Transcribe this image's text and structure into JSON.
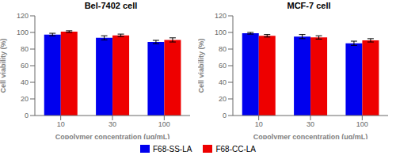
{
  "chart_data": [
    {
      "type": "bar",
      "title": "Bel-7402 cell",
      "categories": [
        "10",
        "30",
        "100"
      ],
      "series": [
        {
          "name": "F68-SS-LA",
          "color": "#0000EE",
          "values": [
            97.5,
            93.5,
            88.5
          ],
          "errors": [
            1.5,
            2.5,
            2.0
          ]
        },
        {
          "name": "F68-CC-LA",
          "color": "#EE0000",
          "values": [
            101.0,
            96.5,
            91.0
          ],
          "errors": [
            1.0,
            1.5,
            2.5
          ]
        }
      ],
      "xlabel": "Copolymer concentration (μg/mL)",
      "ylabel": "Cell viability (%)",
      "ylim": [
        0,
        120
      ],
      "yticks": [
        0,
        20,
        40,
        60,
        80,
        100,
        120
      ],
      "legend": "bottom"
    },
    {
      "type": "bar",
      "title": "MCF-7 cell",
      "categories": [
        "10",
        "30",
        "100"
      ],
      "series": [
        {
          "name": "F68-SS-LA",
          "color": "#0000EE",
          "values": [
            99.0,
            95.0,
            87.0
          ],
          "errors": [
            1.0,
            2.5,
            2.5
          ]
        },
        {
          "name": "F68-CC-LA",
          "color": "#EE0000",
          "values": [
            96.0,
            94.0,
            90.5
          ],
          "errors": [
            1.5,
            2.0,
            2.0
          ]
        }
      ],
      "xlabel": "Copolymer concentration (μg/mL)",
      "ylabel": "Cell viability (%)",
      "ylim": [
        0,
        120
      ],
      "yticks": [
        0,
        20,
        40,
        60,
        80,
        100,
        120
      ],
      "legend": "bottom"
    }
  ]
}
